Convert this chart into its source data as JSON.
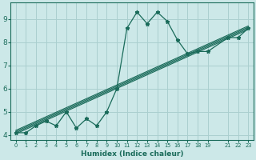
{
  "xlabel": "Humidex (Indice chaleur)",
  "bg_color": "#cce8e8",
  "grid_color": "#aacfcf",
  "line_color": "#1a6b5a",
  "main_x": [
    0,
    1,
    2,
    3,
    4,
    5,
    6,
    7,
    8,
    9,
    10,
    11,
    12,
    13,
    14,
    15,
    16,
    17,
    18,
    19,
    21,
    22,
    23
  ],
  "main_y": [
    4.1,
    4.1,
    4.4,
    4.6,
    4.4,
    5.0,
    4.3,
    4.7,
    4.4,
    5.0,
    6.0,
    8.6,
    9.3,
    8.8,
    9.3,
    8.9,
    8.1,
    7.5,
    7.6,
    7.6,
    8.2,
    8.2,
    8.6
  ],
  "trend_lines": [
    {
      "x": [
        0,
        23
      ],
      "y": [
        4.05,
        8.55
      ]
    },
    {
      "x": [
        0,
        23
      ],
      "y": [
        4.1,
        8.6
      ]
    },
    {
      "x": [
        0,
        23
      ],
      "y": [
        4.15,
        8.65
      ]
    },
    {
      "x": [
        0,
        23
      ],
      "y": [
        4.2,
        8.7
      ]
    }
  ],
  "xlim": [
    -0.5,
    23.5
  ],
  "ylim": [
    3.8,
    9.7
  ],
  "xticks": [
    0,
    1,
    2,
    3,
    4,
    5,
    6,
    7,
    8,
    9,
    10,
    11,
    12,
    13,
    14,
    15,
    16,
    17,
    18,
    19,
    21,
    22,
    23
  ],
  "yticks": [
    4,
    5,
    6,
    7,
    8,
    9
  ],
  "xlabel_fontsize": 6.5,
  "tick_fontsize_x": 4.8,
  "tick_fontsize_y": 6.5
}
